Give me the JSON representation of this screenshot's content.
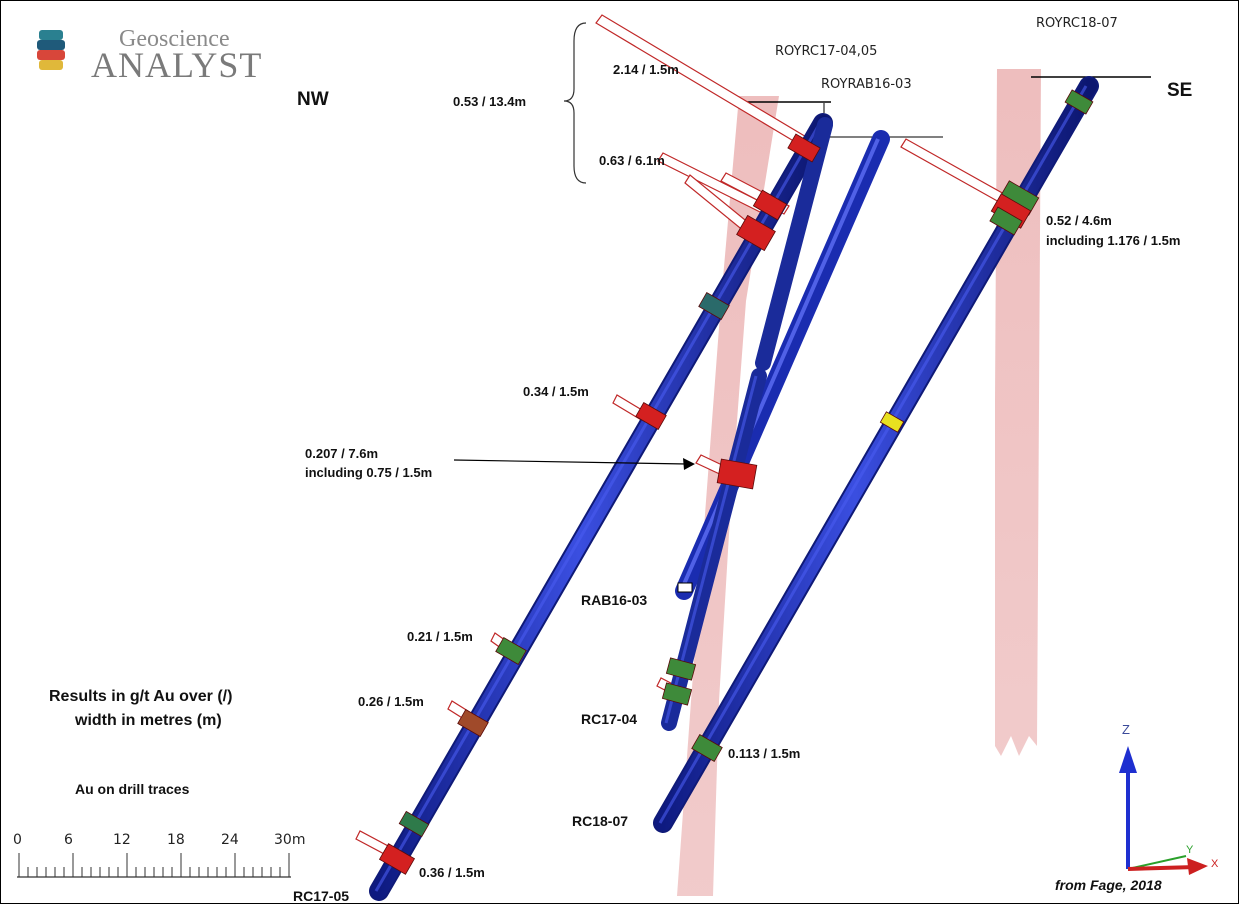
{
  "logo": {
    "line1": "Geoscience",
    "line2": "ANALYST"
  },
  "directions": {
    "nw": "NW",
    "se": "SE"
  },
  "collars": [
    "ROYRC17-04,05",
    "ROYRAB16-03",
    "ROYRC18-07"
  ],
  "holes": {
    "rc1705": "RC17-05",
    "rab1603": "RAB16-03",
    "rc1704": "RC17-04",
    "rc1807": "RC18-07"
  },
  "intercepts": {
    "i1": "0.53 / 13.4m",
    "i2": "2.14 / 1.5m",
    "i3": "0.63 / 6.1m",
    "i4": "0.52 / 4.6m",
    "i5": "including 1.176 / 1.5m",
    "i6": "0.34 / 1.5m",
    "i7": "0.207 / 7.6m",
    "i8": "including 0.75 / 1.5m",
    "i9": "0.21 / 1.5m",
    "i10": "0.26 / 1.5m",
    "i11": "0.113 / 1.5m",
    "i12": "0.36 / 1.5m"
  },
  "legend": {
    "line1": "Results in g/t Au over (/)",
    "line2": "width in metres (m)",
    "traces": "Au on drill traces"
  },
  "scale": {
    "ticks": [
      "0",
      "6",
      "12",
      "18",
      "24",
      "30m"
    ]
  },
  "axes": {
    "z": "Z",
    "y": "Y",
    "x": "X"
  },
  "credit": "from Fage, 2018",
  "colors": {
    "drill": "#1e2fa8",
    "zone": "#e8a8a8",
    "high": "#d42020",
    "mid": "#b05030",
    "low": "#3e8a3a",
    "trace_low": "#e8e020"
  }
}
